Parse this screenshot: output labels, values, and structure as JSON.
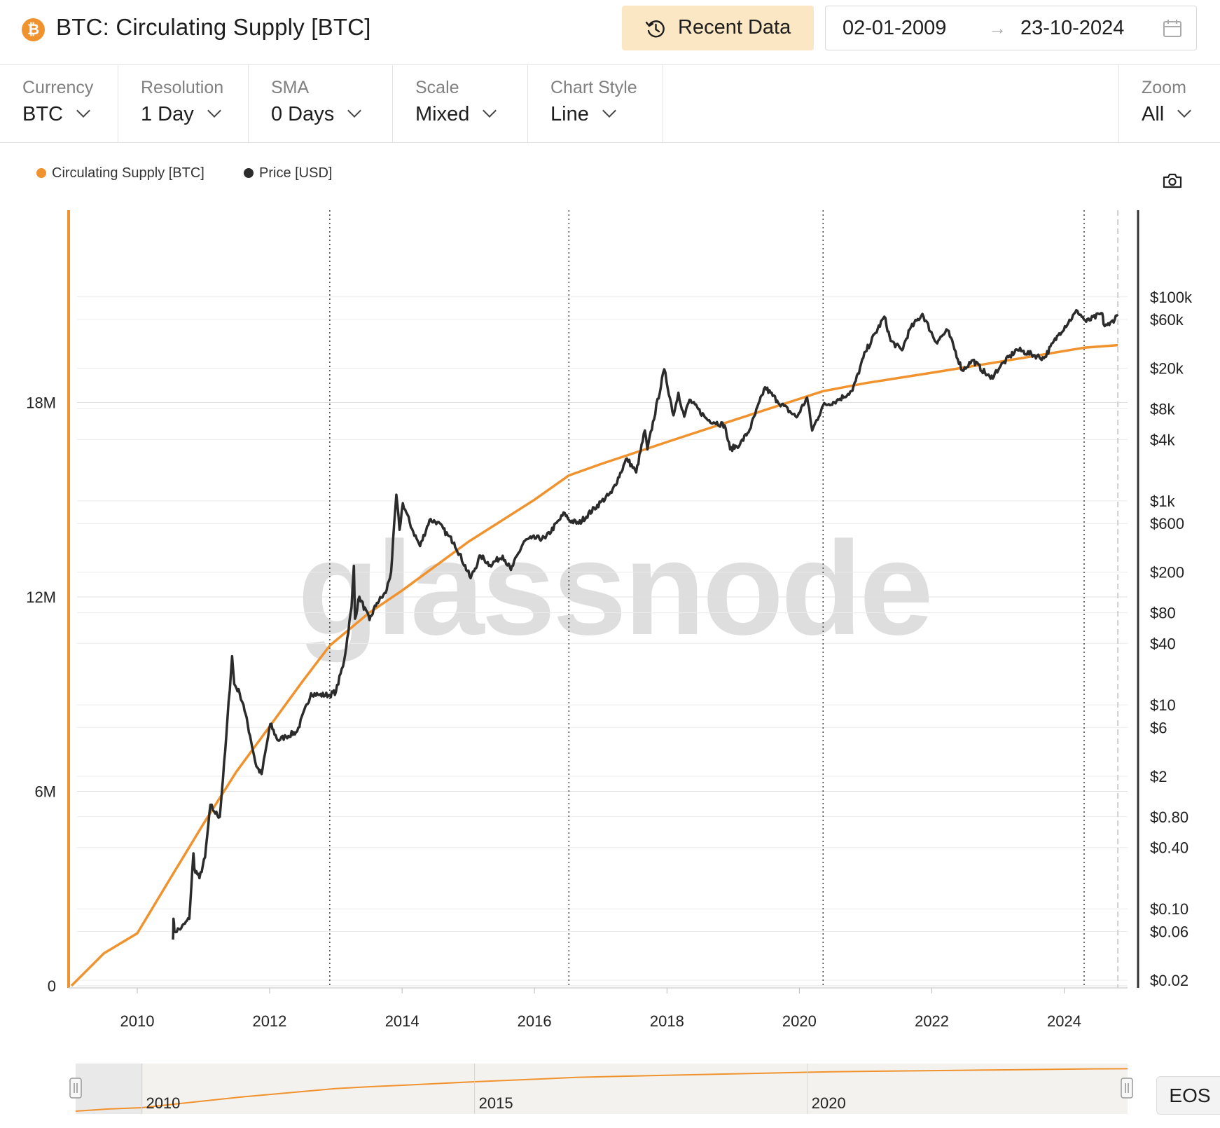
{
  "header": {
    "logo_glyph": "₿",
    "title": "BTC: Circulating Supply [BTC]",
    "recent_button": "Recent Data",
    "date_start": "02-01-2009",
    "date_arrow": "→",
    "date_end": "23-10-2024"
  },
  "controls": [
    {
      "key": "currency",
      "caption": "Currency",
      "value": "BTC"
    },
    {
      "key": "resolution",
      "caption": "Resolution",
      "value": "1 Day"
    },
    {
      "key": "sma",
      "caption": "SMA",
      "value": "0 Days"
    },
    {
      "key": "scale",
      "caption": "Scale",
      "value": "Mixed"
    },
    {
      "key": "chart-style",
      "caption": "Chart Style",
      "value": "Line"
    }
  ],
  "zoom": {
    "caption": "Zoom",
    "value": "All"
  },
  "watermark": "glassnode",
  "eos_button": "EOS",
  "icons": {
    "recent": "history-clock-icon",
    "calendar": "calendar-icon",
    "camera": "camera-icon",
    "logo": "bitcoin-logo-icon",
    "dropdown": "chevron-down-icon",
    "navigator_handles": "drag-handle-icon"
  },
  "colors": {
    "supply": "#f0922d",
    "price": "#2b2b2b",
    "recent_button_bg": "#fbe7c4",
    "watermark": "#dedede"
  },
  "chart_data": {
    "type": "line",
    "title": "BTC: Circulating Supply [BTC]",
    "x_ticks": [
      "2010",
      "2012",
      "2014",
      "2016",
      "2018",
      "2020",
      "2022",
      "2024"
    ],
    "x_range": [
      "2009-01-02",
      "2024-10-23"
    ],
    "y_left": {
      "ticks": [
        "0",
        "6M",
        "12M",
        "18M"
      ],
      "range": [
        0,
        24000000
      ],
      "scale": "linear"
    },
    "y_right": {
      "ticks": [
        "$0.02",
        "$0.06",
        "$0.10",
        "$0.40",
        "$0.80",
        "$2",
        "$6",
        "$10",
        "$40",
        "$80",
        "$200",
        "$600",
        "$1k",
        "$4k",
        "$8k",
        "$20k",
        "$60k",
        "$100k"
      ],
      "range": [
        0.02,
        500000
      ],
      "scale": "log"
    },
    "halving_dates": [
      "2012-11-28",
      "2016-07-09",
      "2020-05-11",
      "2024-04-20"
    ],
    "legend_position": "top-left",
    "series": [
      {
        "name": "Circulating Supply [BTC]",
        "axis": "left",
        "points": [
          [
            "2009-01-03",
            0
          ],
          [
            "2009-07-01",
            1000000
          ],
          [
            "2010-01-01",
            1620000
          ],
          [
            "2010-07-01",
            3300000
          ],
          [
            "2011-01-01",
            5000000
          ],
          [
            "2011-07-01",
            6600000
          ],
          [
            "2012-01-01",
            8000000
          ],
          [
            "2012-07-01",
            9400000
          ],
          [
            "2012-11-28",
            10500000
          ],
          [
            "2013-07-01",
            11500000
          ],
          [
            "2014-01-01",
            12200000
          ],
          [
            "2015-01-01",
            13700000
          ],
          [
            "2016-01-01",
            15000000
          ],
          [
            "2016-07-09",
            15750000
          ],
          [
            "2017-01-01",
            16100000
          ],
          [
            "2018-01-01",
            16780000
          ],
          [
            "2019-01-01",
            17450000
          ],
          [
            "2020-05-11",
            18350000
          ],
          [
            "2021-01-01",
            18600000
          ],
          [
            "2022-01-01",
            18920000
          ],
          [
            "2023-01-01",
            19250000
          ],
          [
            "2024-04-20",
            19690000
          ],
          [
            "2024-10-23",
            19770000
          ]
        ]
      },
      {
        "name": "Price [USD]",
        "axis": "right",
        "points": [
          [
            "2010-07-17",
            0.05
          ],
          [
            "2010-07-20",
            0.08
          ],
          [
            "2010-07-25",
            0.06
          ],
          [
            "2010-09-01",
            0.065
          ],
          [
            "2010-10-15",
            0.08
          ],
          [
            "2010-11-07",
            0.35
          ],
          [
            "2010-11-12",
            0.25
          ],
          [
            "2010-12-10",
            0.2
          ],
          [
            "2011-01-10",
            0.32
          ],
          [
            "2011-02-09",
            1.05
          ],
          [
            "2011-03-01",
            0.9
          ],
          [
            "2011-04-01",
            0.8
          ],
          [
            "2011-05-01",
            3.5
          ],
          [
            "2011-06-08",
            30
          ],
          [
            "2011-06-20",
            16
          ],
          [
            "2011-07-20",
            13
          ],
          [
            "2011-08-10",
            10
          ],
          [
            "2011-09-15",
            5
          ],
          [
            "2011-10-20",
            2.5
          ],
          [
            "2011-11-18",
            2.1
          ],
          [
            "2012-01-05",
            6.5
          ],
          [
            "2012-02-15",
            4.5
          ],
          [
            "2012-04-01",
            4.9
          ],
          [
            "2012-06-01",
            5.5
          ],
          [
            "2012-08-17",
            13
          ],
          [
            "2012-10-01",
            12.5
          ],
          [
            "2012-11-28",
            12.5
          ],
          [
            "2013-01-01",
            13.5
          ],
          [
            "2013-02-15",
            27
          ],
          [
            "2013-03-28",
            90
          ],
          [
            "2013-04-10",
            230
          ],
          [
            "2013-04-16",
            70
          ],
          [
            "2013-05-10",
            115
          ],
          [
            "2013-07-05",
            68
          ],
          [
            "2013-08-15",
            100
          ],
          [
            "2013-10-02",
            125
          ],
          [
            "2013-11-01",
            200
          ],
          [
            "2013-11-30",
            1150
          ],
          [
            "2013-12-18",
            520
          ],
          [
            "2014-01-05",
            950
          ],
          [
            "2014-02-25",
            530
          ],
          [
            "2014-04-10",
            360
          ],
          [
            "2014-06-01",
            650
          ],
          [
            "2014-07-15",
            620
          ],
          [
            "2014-09-10",
            460
          ],
          [
            "2014-10-15",
            390
          ],
          [
            "2015-01-14",
            175
          ],
          [
            "2015-03-10",
            290
          ],
          [
            "2015-05-01",
            235
          ],
          [
            "2015-07-10",
            290
          ],
          [
            "2015-08-24",
            210
          ],
          [
            "2015-11-04",
            400
          ],
          [
            "2015-12-15",
            430
          ],
          [
            "2016-03-01",
            430
          ],
          [
            "2016-06-16",
            760
          ],
          [
            "2016-07-09",
            650
          ],
          [
            "2016-09-01",
            600
          ],
          [
            "2016-12-31",
            970
          ],
          [
            "2017-03-01",
            1200
          ],
          [
            "2017-05-25",
            2600
          ],
          [
            "2017-07-15",
            1900
          ],
          [
            "2017-09-01",
            4900
          ],
          [
            "2017-09-15",
            3200
          ],
          [
            "2017-12-17",
            19500
          ],
          [
            "2018-02-06",
            6900
          ],
          [
            "2018-03-05",
            11500
          ],
          [
            "2018-04-06",
            6700
          ],
          [
            "2018-05-05",
            9800
          ],
          [
            "2018-08-10",
            6300
          ],
          [
            "2018-11-15",
            5500
          ],
          [
            "2018-12-15",
            3200
          ],
          [
            "2019-02-08",
            3600
          ],
          [
            "2019-04-02",
            5000
          ],
          [
            "2019-06-26",
            13000
          ],
          [
            "2019-09-01",
            9600
          ],
          [
            "2019-12-17",
            6600
          ],
          [
            "2020-02-13",
            10300
          ],
          [
            "2020-03-12",
            4900
          ],
          [
            "2020-05-11",
            8600
          ],
          [
            "2020-07-25",
            9600
          ],
          [
            "2020-10-20",
            12000
          ],
          [
            "2020-12-31",
            29000
          ],
          [
            "2021-04-14",
            64000
          ],
          [
            "2021-05-19",
            37000
          ],
          [
            "2021-07-20",
            30000
          ],
          [
            "2021-09-01",
            48000
          ],
          [
            "2021-11-10",
            68000
          ],
          [
            "2022-01-24",
            36000
          ],
          [
            "2022-03-29",
            47000
          ],
          [
            "2022-06-18",
            19000
          ],
          [
            "2022-08-15",
            24000
          ],
          [
            "2022-11-21",
            15800
          ],
          [
            "2023-01-15",
            21000
          ],
          [
            "2023-04-14",
            30500
          ],
          [
            "2023-09-11",
            25000
          ],
          [
            "2023-12-05",
            44000
          ],
          [
            "2024-03-14",
            73000
          ],
          [
            "2024-05-01",
            57000
          ],
          [
            "2024-07-29",
            69000
          ],
          [
            "2024-08-05",
            54000
          ],
          [
            "2024-09-06",
            53000
          ],
          [
            "2024-10-23",
            67000
          ]
        ]
      }
    ]
  },
  "navigator": {
    "tick_labels": [
      "2010",
      "2015",
      "2020"
    ]
  }
}
